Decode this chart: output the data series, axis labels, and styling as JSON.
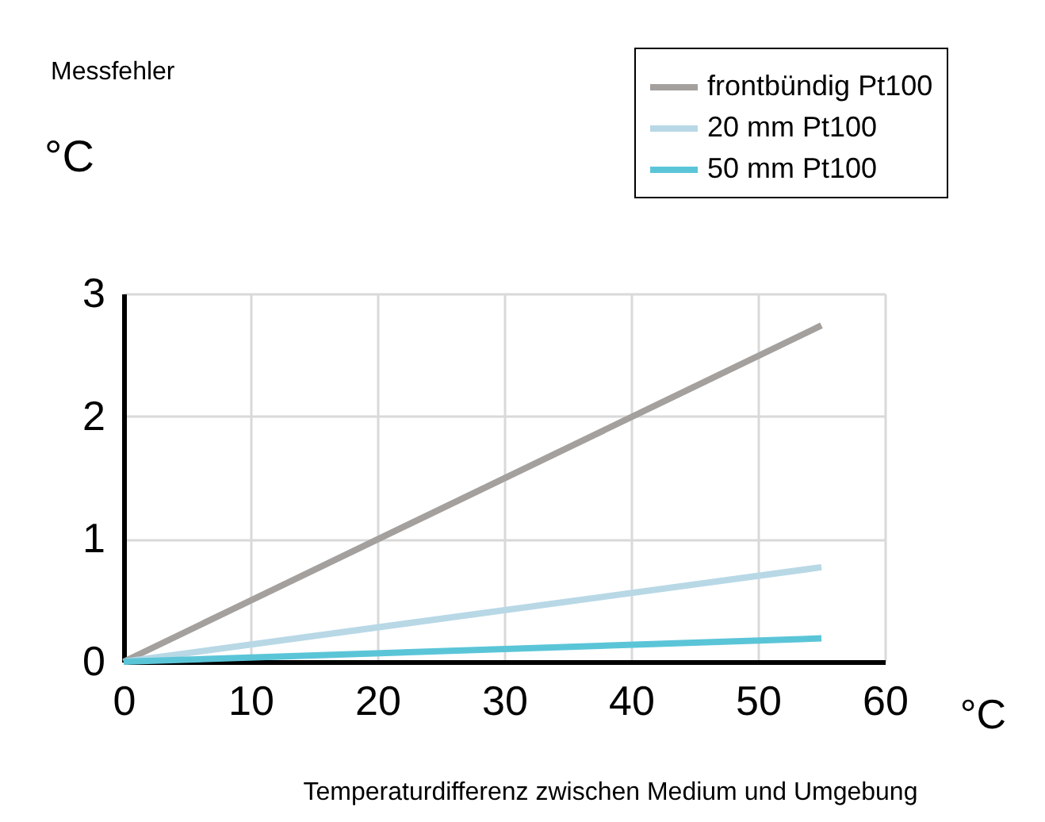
{
  "chart_data": {
    "type": "line",
    "title": "Messfehler",
    "ylabel": "°C",
    "xlabel": "Temperaturdifferenz zwischen Medium und Umgebung",
    "annotations": [
      "°C"
    ],
    "series": [
      {
        "name": "frontbündig Pt100",
        "color": "#a3a09e",
        "values": [
          0,
          2.74
        ]
      },
      {
        "name": "20 mm Pt100",
        "color": "#b8d8e6",
        "values": [
          0,
          0.77
        ]
      },
      {
        "name": "50 mm Pt100",
        "color": "#5bc5d8",
        "values": [
          0,
          0.19
        ]
      }
    ],
    "x": [
      0,
      55
    ],
    "xlim": [
      0,
      60
    ],
    "xticks": [
      0,
      10,
      20,
      30,
      40,
      50,
      60
    ],
    "ylim": [
      0,
      3
    ],
    "yticks": [
      0,
      1,
      2,
      3
    ],
    "grid": true,
    "legend": "top right",
    "marker": "none",
    "line_style": "solid"
  }
}
